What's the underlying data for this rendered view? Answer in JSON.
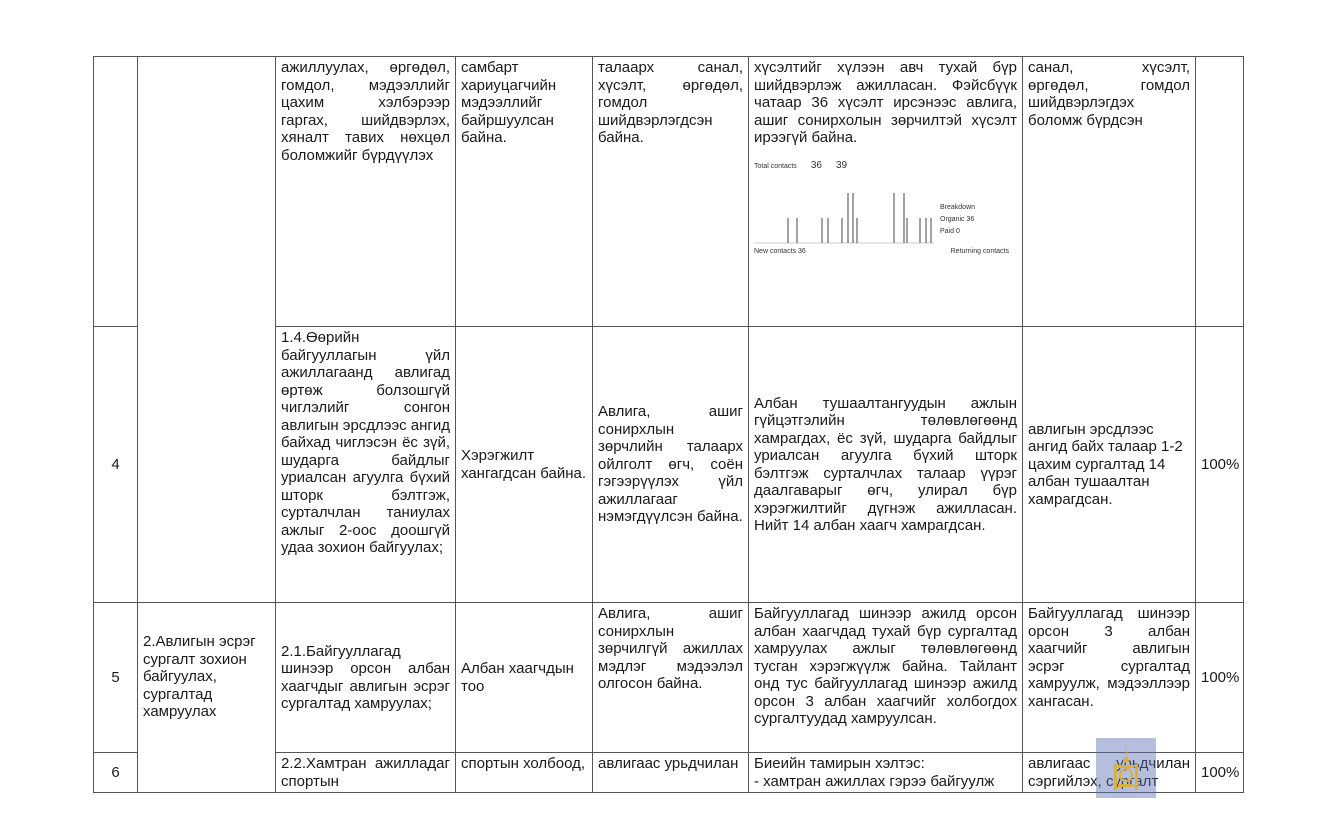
{
  "rows": [
    {
      "no": "",
      "goal": "",
      "action": "ажиллуулах, өргөдөл, гомдол, мэдээллийг цахим хэлбэрээр гаргах, шийдвэрлэх, хяналт тавих нөхцөл боломжийг бүрдүүлэх",
      "indicator": "самбарт хариуцагчийн мэдээллийг байршуулсан байна.",
      "outcome": "талаарх санал, хүсэлт, өргөдөл, гомдол шийдвэрлэгдсэн байна.",
      "report": "хүсэлтийг хүлээн авч тухай бүр шийдвэрлэж ажилласан. Фэйсбүүк чатаар 36 хүсэлт ирсэнээс авлига, ашиг сонирхолын зөрчилтэй хүсэлт ирээгүй байна.",
      "result": "санал, хүсэлт, өргөдөл, гомдол шийдвэрлэгдэх боломж бүрдсэн",
      "percent": ""
    },
    {
      "no": "4",
      "goal": "",
      "action": "1.4.Өөрийн байгууллагын үйл ажиллагаанд авлигад өртөж болзошгүй чиглэлийг сонгон авлигын эрсдлээс ангид байхад чиглэсэн ёс зүй, шударга байдлыг уриалсан агуулга бүхий шторк бэлтгэж, сурталчлан таниулах ажлыг 2-оос доошгүй удаа зохион байгуулах;",
      "indicator": "Хэрэгжилт хангагдсан байна.",
      "outcome": "Авлига, ашиг сонирхлын зөрчлийн талаарх ойлголт өгч, соён гэгээрүүлэх үйл ажиллагааг нэмэгдүүлсэн байна.",
      "report": "Албан тушаалтангуудын ажлын гүйцэтгэлийн төлөвлөгөөнд хамрагдах, ёс зүй, шударга байдлыг уриалсан агуулга бүхий шторк бэлтгэж сурталчлах талаар үүрэг даалгаварыг өгч, улирал бүр хэрэгжилтийг дүгнэж ажилласан. Нийт 14 албан хаагч хамрагдсан.",
      "result": "авлигын эрсдлээс ангид байх талаар 1-2 цахим сургалтад 14 албан тушаалтан хамрагдсан.",
      "percent": "100%"
    },
    {
      "no": "5",
      "goal": "2.Авлигын эсрэг сургалт зохион байгуулах, сургалтад хамруулах",
      "action": "2.1.Байгууллагад шинээр орсон албан хаагчдыг авлигын эсрэг сургалтад хамруулах;",
      "indicator": "Албан хаагчдын тоо",
      "outcome": "Авлига, ашиг сонирхлын зөрчилгүй ажиллах мэдлэг мэдээлэл олгосон байна.",
      "report": "Байгууллагад шинээр ажилд орсон албан хаагчдад тухай бүр сургалтад хамруулах ажлыг төлөвлөгөөнд тусган хэрэгжүүлж байна. Тайлант онд тус байгууллагад шинээр ажилд орсон 3 албан хаагчийг холбогдох сургалтуудад хамруулсан.",
      "result": "Байгууллагад шинээр орсон 3 албан хаагчийг авлигын эсрэг сургалтад хамруулж, мэдээллээр хангасан.",
      "percent": "100%"
    },
    {
      "no": "6",
      "action": "2.2.Хамтран ажилладаг спортын",
      "indicator": "спортын холбоод,",
      "outcome": "авлигаас урьдчилан",
      "report": "Биеийн тамирын хэлтэс:\n- хамтран ажиллах гэрээ байгуулж",
      "result": "авлигаас урьдчилан сэргийлэх, сургалт",
      "percent": "100%"
    }
  ],
  "screenshot": {
    "total_contacts": "36",
    "second_metric": "39",
    "breakdown_label": "Breakdown",
    "organic_label": "Organic",
    "organic_value": "36",
    "paid_label": "Paid",
    "paid_value": "0",
    "new_contacts_label": "New contacts",
    "new_contacts_value": "36",
    "returning_label": "Returning contacts"
  },
  "watermark_icon": "soyombo-emblem-icon",
  "colors": {
    "border": "#555555",
    "watermark": "#5a6eb4",
    "emblem": "#d8b040"
  }
}
